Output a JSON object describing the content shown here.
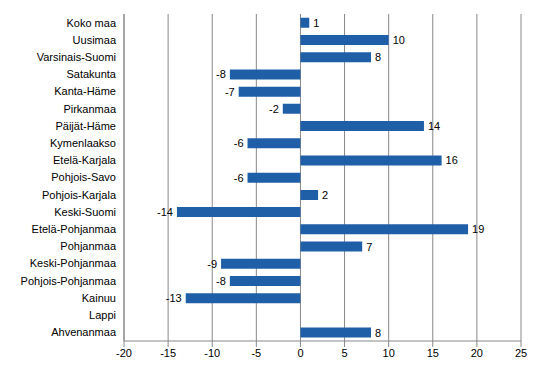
{
  "chart_data": {
    "type": "bar",
    "orientation": "horizontal",
    "categories": [
      "Koko maa",
      "Uusimaa",
      "Varsinais-Suomi",
      "Satakunta",
      "Kanta-Häme",
      "Pirkanmaa",
      "Päijät-Häme",
      "Kymenlaakso",
      "Etelä-Karjala",
      "Pohjois-Savo",
      "Pohjois-Karjala",
      "Keski-Suomi",
      "Etelä-Pohjanmaa",
      "Pohjanmaa",
      "Keski-Pohjanmaa",
      "Pohjois-Pohjanmaa",
      "Kainuu",
      "Lappi",
      "Ahvenanmaa"
    ],
    "values": [
      1,
      10,
      8,
      -8,
      -7,
      -2,
      14,
      -6,
      16,
      -6,
      2,
      -14,
      19,
      7,
      -9,
      -8,
      -13,
      0,
      8
    ],
    "color": "#1f5fa8",
    "xlim": [
      -20,
      25
    ],
    "xticks": [
      -20,
      -15,
      -10,
      -5,
      0,
      5,
      10,
      15,
      20,
      25
    ],
    "grid": true,
    "data_labels": true
  }
}
